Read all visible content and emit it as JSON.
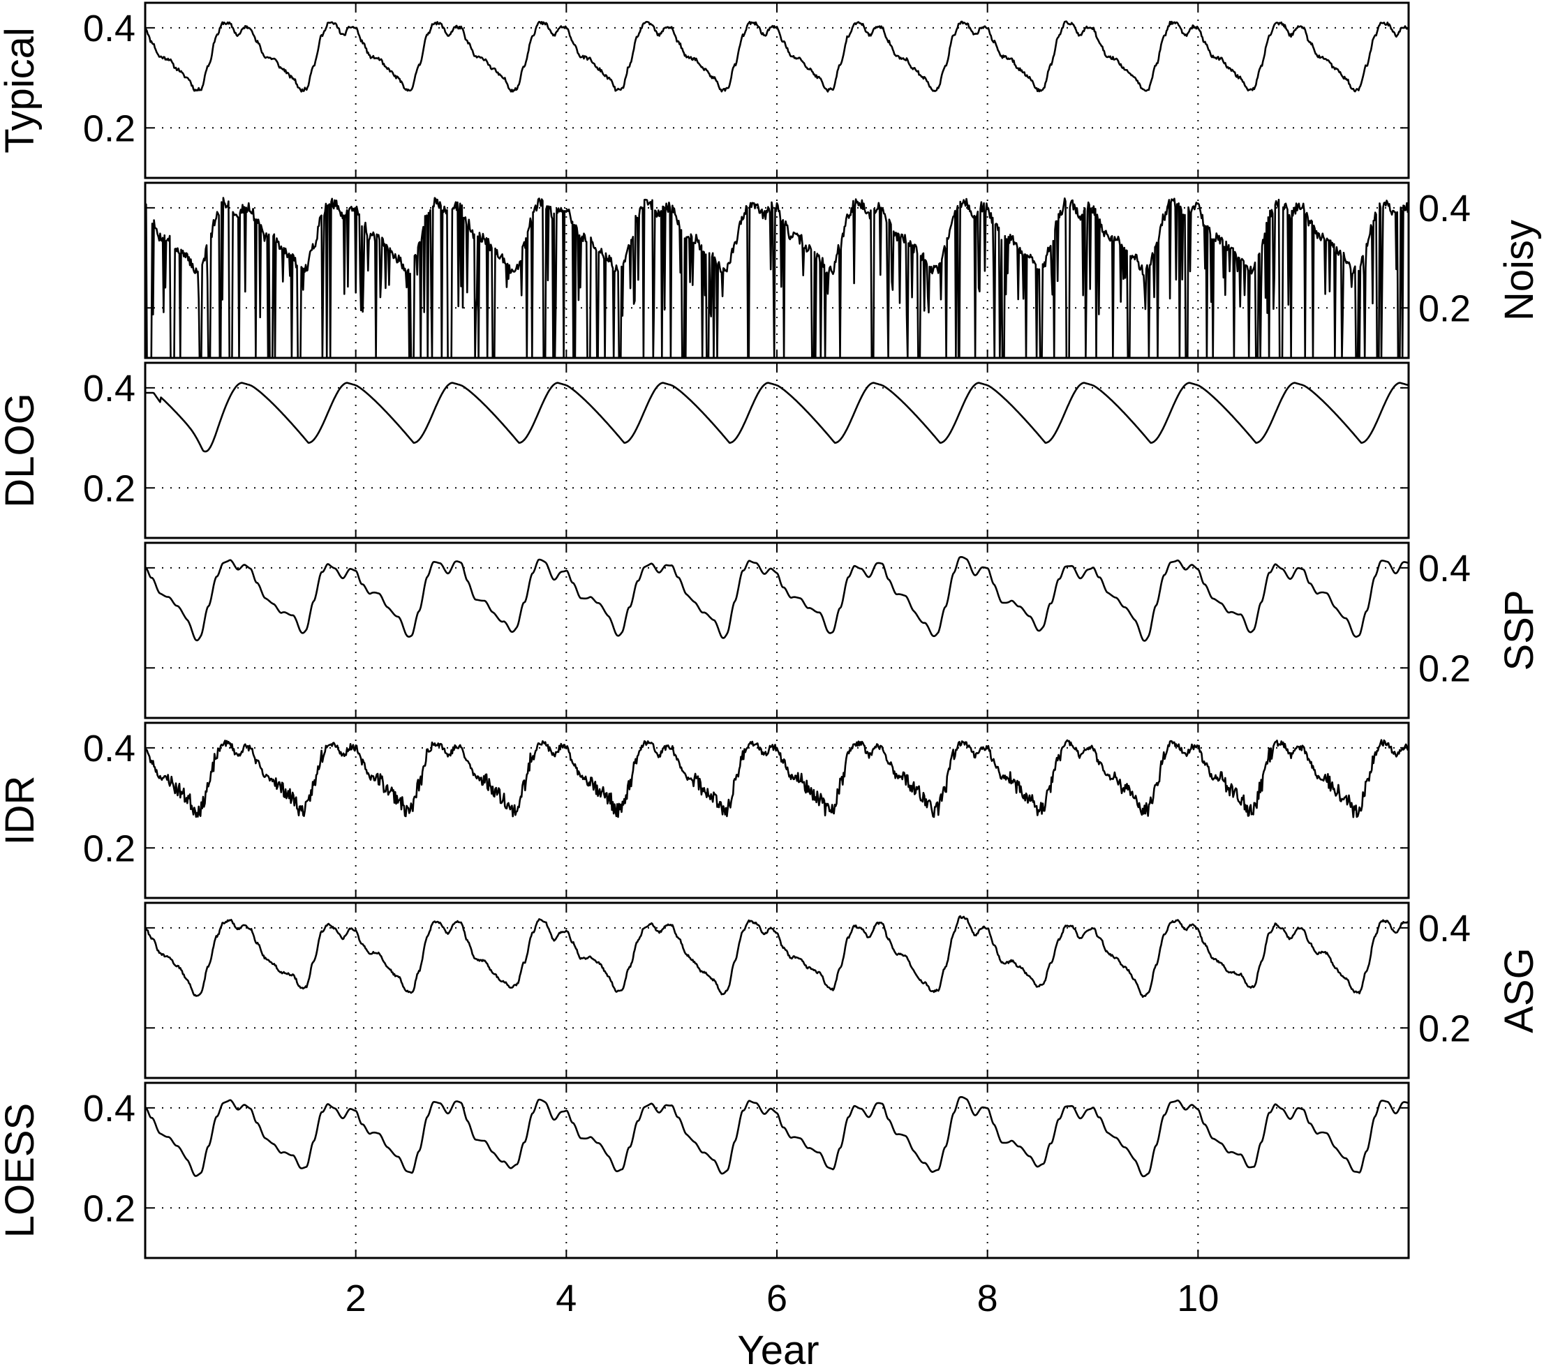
{
  "chart_data": {
    "type": "line",
    "xlabel": "Year",
    "xlim": [
      0,
      12
    ],
    "ylim": [
      0.1,
      0.45
    ],
    "xticks": [
      2,
      4,
      6,
      8,
      10
    ],
    "xtick_labels": [
      "2",
      "4",
      "6",
      "8",
      "10"
    ],
    "yticks": [
      0.2,
      0.4
    ],
    "ytick_labels": [
      "0.2",
      "0.4"
    ],
    "grid": true,
    "panels": [
      {
        "name": "Typical",
        "label_side": "left"
      },
      {
        "name": "Noisy",
        "label_side": "right"
      },
      {
        "name": "DLOG",
        "label_side": "left"
      },
      {
        "name": "SSP",
        "label_side": "right"
      },
      {
        "name": "IDR",
        "label_side": "left"
      },
      {
        "name": "ASG",
        "label_side": "right"
      },
      {
        "name": "LOESS",
        "label_side": "left"
      }
    ],
    "approximate_shape": {
      "period_years": 1,
      "cycle_start_value": 0.4,
      "peak_value": 0.41,
      "shoulder_value": 0.335,
      "trough_value": 0.275,
      "noisy_dropout_value": 0.1
    },
    "noisy_dropouts": [
      [
        0.02,
        0.065
      ],
      [
        0.24,
        0.28
      ],
      [
        0.51,
        0.54
      ],
      [
        0.6,
        0.62
      ],
      [
        0.8,
        0.83
      ],
      [
        1.18,
        1.21
      ],
      [
        1.45,
        1.48
      ],
      [
        2.52,
        2.55
      ],
      [
        2.87,
        2.9
      ],
      [
        3.3,
        3.32
      ],
      [
        3.78,
        3.8
      ],
      [
        4.2,
        4.23
      ],
      [
        4.5,
        4.52
      ],
      [
        5.1,
        5.12
      ],
      [
        5.33,
        5.35
      ],
      [
        5.72,
        5.74
      ],
      [
        6.33,
        6.35
      ],
      [
        6.9,
        6.92
      ],
      [
        7.34,
        7.36
      ],
      [
        7.72,
        7.74
      ],
      [
        8.14,
        8.16
      ],
      [
        8.5,
        8.52
      ],
      [
        8.75,
        8.77
      ],
      [
        9.33,
        9.35
      ],
      [
        9.88,
        9.9
      ],
      [
        10.55,
        10.57
      ],
      [
        10.78,
        10.8
      ],
      [
        11.5,
        11.52
      ],
      [
        11.7,
        11.72
      ],
      [
        11.9,
        11.92
      ]
    ]
  }
}
